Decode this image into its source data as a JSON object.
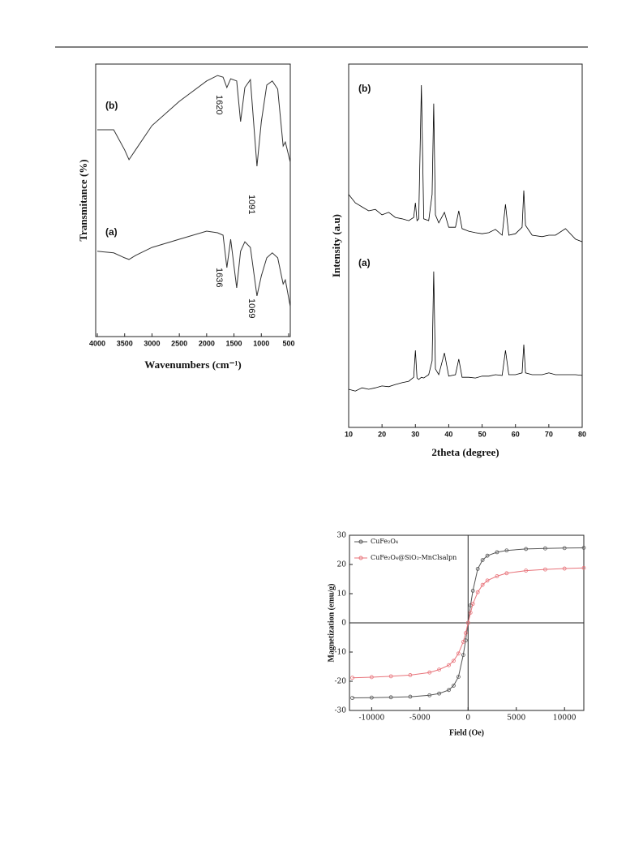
{
  "chart_data": [
    {
      "type": "line",
      "x_label": "Wavenumbers (cm⁻¹)",
      "y_label": "Transmitance (%)",
      "xlim": [
        4030,
        470
      ],
      "xticks": [
        4000,
        3500,
        3000,
        2500,
        2000,
        1500,
        1000,
        500
      ],
      "ylim": [
        0,
        100
      ],
      "x": [
        4000,
        3700,
        3500,
        3420,
        3300,
        3000,
        2500,
        2000,
        1800,
        1700,
        1630,
        1560,
        1450,
        1380,
        1300,
        1200,
        1080,
        1000,
        900,
        800,
        700,
        600,
        560,
        470
      ],
      "series": [
        {
          "name": "(a)",
          "color": "#333333",
          "values": [
            31.3,
            30.7,
            28.9,
            28.3,
            29.8,
            32.7,
            35.7,
            38.7,
            38.1,
            37.2,
            25.3,
            35.7,
            17.9,
            31.3,
            34.8,
            32.7,
            14.9,
            22.3,
            28.9,
            30.7,
            28.9,
            19.3,
            20.8,
            11.0
          ]
        },
        {
          "name": "(b)",
          "color": "#333333",
          "values": [
            75.9,
            75.9,
            68.5,
            64.9,
            68.5,
            77.4,
            86.3,
            93.8,
            95.8,
            95.2,
            91.4,
            94.6,
            93.8,
            78.9,
            91.4,
            94.3,
            62.5,
            78.9,
            92.3,
            93.8,
            90.8,
            69.9,
            71.4,
            64.0
          ]
        }
      ],
      "annotations": [
        "1620",
        "1091",
        "1636",
        "1069"
      ]
    },
    {
      "type": "line",
      "x_label": "2theta (degree)",
      "y_label": "Intensity (a.u)",
      "xlim": [
        10,
        80
      ],
      "xticks": [
        10,
        20,
        30,
        40,
        50,
        60,
        70,
        80
      ],
      "ylim": [
        0,
        100
      ],
      "x": [
        10,
        12,
        14,
        16,
        18,
        20,
        22,
        24,
        26,
        28,
        29.5,
        30,
        30.5,
        31,
        31.8,
        32.5,
        34,
        35,
        35.5,
        36,
        37,
        38.7,
        40,
        42,
        43,
        44,
        46,
        48,
        50,
        52,
        54,
        56,
        57,
        58,
        60,
        62,
        62.5,
        63,
        65,
        68,
        70,
        72,
        75,
        78,
        80
      ],
      "series": [
        {
          "name": "(a)",
          "color": "#000000",
          "values": [
            10.5,
            10.0,
            10.9,
            10.5,
            10.9,
            11.4,
            11.2,
            11.8,
            12.3,
            12.7,
            13.8,
            21.2,
            13.6,
            13.2,
            13.8,
            13.6,
            14.5,
            18.3,
            42.9,
            16.1,
            14.5,
            20.5,
            14.1,
            14.5,
            18.8,
            13.8,
            13.8,
            13.6,
            14.1,
            14.1,
            14.5,
            14.3,
            21.2,
            14.5,
            14.5,
            15.0,
            22.8,
            15.0,
            14.5,
            14.5,
            15.0,
            14.5,
            14.5,
            14.5,
            14.3
          ]
        },
        {
          "name": "(b)",
          "color": "#000000",
          "values": [
            64.1,
            61.8,
            60.7,
            59.6,
            60.0,
            58.5,
            59.2,
            57.8,
            57.4,
            56.9,
            57.8,
            61.8,
            56.9,
            57.4,
            94.2,
            57.4,
            56.9,
            64.1,
            89.1,
            58.5,
            56.3,
            59.2,
            55.1,
            55.1,
            59.6,
            54.7,
            54.0,
            53.6,
            53.3,
            53.6,
            54.5,
            52.9,
            61.4,
            52.9,
            53.3,
            55.1,
            65.2,
            55.6,
            52.9,
            52.5,
            52.9,
            52.9,
            54.7,
            51.8,
            51.1
          ]
        }
      ]
    },
    {
      "type": "line",
      "x_label": "Field (Oe)",
      "y_label": "Magnetization (emu/g)",
      "markers": true,
      "zero_lines": true,
      "legend": "upper left",
      "xlim": [
        -12300,
        12000
      ],
      "xticks": [
        -10000,
        -5000,
        0,
        5000,
        10000
      ],
      "ylim": [
        -30,
        30
      ],
      "yticks": [
        -30,
        -20,
        -10,
        0,
        10,
        20,
        30
      ],
      "x": [
        -12000,
        -10000,
        -8000,
        -6000,
        -4000,
        -3000,
        -2000,
        -1500,
        -1000,
        -500,
        -250,
        0,
        250,
        500,
        1000,
        1500,
        2000,
        3000,
        4000,
        6000,
        8000,
        10000,
        12000
      ],
      "series": [
        {
          "name": "CuFe₂O₄",
          "color": "#555555",
          "values": [
            -25.7,
            -25.6,
            -25.5,
            -25.3,
            -24.8,
            -24.2,
            -23,
            -21.5,
            -18.5,
            -11,
            -6,
            0,
            6,
            11,
            18.5,
            21.5,
            23,
            24.2,
            24.8,
            25.3,
            25.5,
            25.6,
            25.7
          ]
        },
        {
          "name": "CuFe₂O₄@SiO₂-MnClsalpn",
          "color": "#e8737a",
          "values": [
            -18.8,
            -18.6,
            -18.3,
            -17.9,
            -17,
            -16,
            -14.5,
            -13,
            -10.5,
            -6.5,
            -3.5,
            0,
            3.5,
            6.5,
            10.5,
            13,
            14.5,
            16,
            17,
            17.9,
            18.3,
            18.6,
            18.8
          ]
        }
      ]
    }
  ]
}
